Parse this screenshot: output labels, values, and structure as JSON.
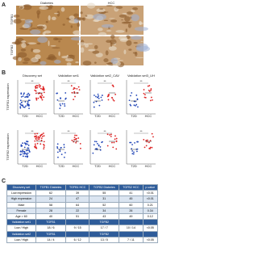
{
  "panel_a": {
    "label": "A",
    "columns": [
      "Diabetes",
      "HCC"
    ],
    "rows": [
      "TGFB1",
      "TGFB2"
    ]
  },
  "panel_b": {
    "label": "B",
    "titles": [
      "Discovery set",
      "Validation set1",
      "Validation set2_CAV",
      "Validation set3_UH"
    ],
    "row_labels": [
      "TGFB1 expression",
      "TGFB2 expression"
    ],
    "categories": [
      "T2D",
      "HCC"
    ],
    "significance": "**"
  },
  "panel_c": {
    "label": "C",
    "table": {
      "header": [
        "Discovery set",
        "TGFB1 Diabetes",
        "TGFB1 HCC",
        "TGFB2 Diabetes",
        "TGFB2 HCC",
        "p-value"
      ],
      "rows": [
        [
          "Low expression",
          "62",
          "39",
          "55",
          "41",
          "<0.01"
        ],
        [
          "High expression",
          "24",
          "47",
          "31",
          "45",
          "<0.01"
        ],
        [
          "Male",
          "58",
          "64",
          "52",
          "60",
          "0.21"
        ],
        [
          "Female",
          "28",
          "22",
          "34",
          "26",
          "0.34"
        ],
        [
          "Age > 60",
          "40",
          "51",
          "43",
          "49",
          "0.12"
        ],
        [
          "Validation set1",
          "TGFB1",
          "",
          "TGFB2",
          "",
          ""
        ],
        [
          "Low / High",
          "18 / 6",
          "9 / 15",
          "17 / 7",
          "10 / 14",
          "<0.05"
        ],
        [
          "Validation set2",
          "TGFB1",
          "",
          "TGFB2",
          "",
          ""
        ],
        [
          "Low / High",
          "14 / 4",
          "6 / 12",
          "13 / 5",
          "7 / 11",
          "<0.05"
        ]
      ]
    }
  }
}
